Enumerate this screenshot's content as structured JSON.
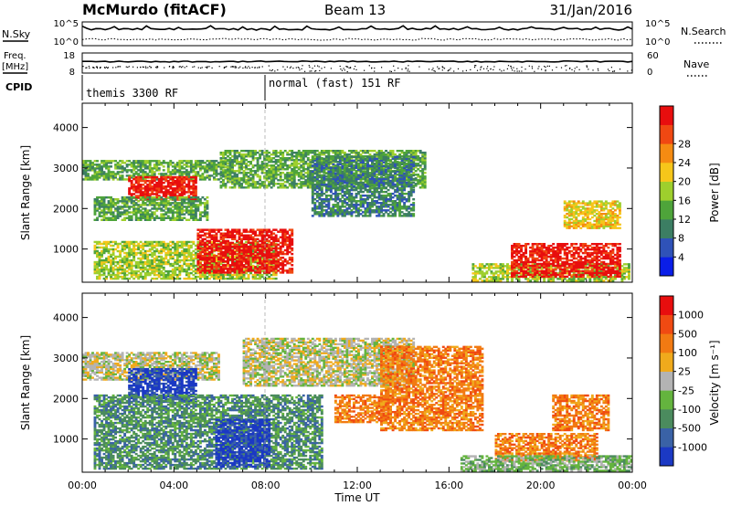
{
  "header": {
    "station": "McMurdo (fitACF)",
    "beam": "Beam 13",
    "date": "31/Jan/2016"
  },
  "top_panels": {
    "nsky_label": "N.Sky",
    "nsearch_label": "N.Search",
    "nsky_ticks": [
      "10^5",
      "10^0"
    ],
    "nsearch_ticks": [
      "10^5",
      "10^0"
    ],
    "freq_label_1": "Freq.",
    "freq_label_2": "[MHz]",
    "freq_ticks": [
      "18",
      "8"
    ],
    "nave_label": "Nave",
    "nave_ticks": [
      "60",
      "0"
    ],
    "cpid_label": "CPID",
    "cpid_segments": [
      "themis 3300 RF",
      "normal (fast) 151 RF"
    ]
  },
  "chart_data": [
    {
      "type": "heatmap",
      "panel": "power",
      "ylabel": "Slant Range [km]",
      "xlabel": "",
      "ylim": [
        180,
        4600
      ],
      "yticks": [
        "1000",
        "2000",
        "3000",
        "4000"
      ],
      "xlim_hours": [
        0,
        24
      ],
      "xticks": [
        "00:00",
        "04:00",
        "08:00",
        "12:00",
        "16:00",
        "20:00",
        "00:00"
      ],
      "colorbar": {
        "label": "Power [dB]",
        "ticks": [
          "4",
          "8",
          "12",
          "16",
          "20",
          "24",
          "28"
        ],
        "colors": [
          "#0a1ee8",
          "#2f52b8",
          "#3c7e63",
          "#4ea43a",
          "#9ecf2d",
          "#f6c61a",
          "#f58b12",
          "#f04812",
          "#e80e0e"
        ]
      },
      "regions": [
        {
          "t": [
            0.0,
            6.5
          ],
          "r": [
            2700,
            3200
          ],
          "level": 3
        },
        {
          "t": [
            2.0,
            5.0
          ],
          "r": [
            2200,
            2800
          ],
          "level": 8
        },
        {
          "t": [
            0.5,
            5.5
          ],
          "r": [
            1700,
            2300
          ],
          "level": 3
        },
        {
          "t": [
            0.5,
            8.5
          ],
          "r": [
            250,
            1200
          ],
          "level": 4
        },
        {
          "t": [
            5.0,
            9.2
          ],
          "r": [
            400,
            1500
          ],
          "level": 8
        },
        {
          "t": [
            6.0,
            15.0
          ],
          "r": [
            2500,
            3450
          ],
          "level": 3
        },
        {
          "t": [
            10.0,
            14.5
          ],
          "r": [
            1800,
            3300
          ],
          "level": 2
        },
        {
          "t": [
            21.0,
            23.5
          ],
          "r": [
            1500,
            2200
          ],
          "level": 5
        },
        {
          "t": [
            17.0,
            23.9
          ],
          "r": [
            200,
            650
          ],
          "level": 4
        },
        {
          "t": [
            18.7,
            23.5
          ],
          "r": [
            300,
            1150
          ],
          "level": 8
        }
      ]
    },
    {
      "type": "heatmap",
      "panel": "velocity",
      "ylabel": "Slant Range [km]",
      "xlabel": "Time UT",
      "ylim": [
        180,
        4600
      ],
      "yticks": [
        "1000",
        "2000",
        "3000",
        "4000"
      ],
      "xlim_hours": [
        0,
        24
      ],
      "xticks": [
        "00:00",
        "04:00",
        "08:00",
        "12:00",
        "16:00",
        "20:00",
        "00:00"
      ],
      "colorbar": {
        "label": "Velocity [m s⁻¹]",
        "ticks": [
          "1000",
          "500",
          "100",
          "25",
          "-25",
          "-100",
          "-500",
          "-1000"
        ],
        "colors": [
          "#1b39c4",
          "#3a62a6",
          "#4b8b5e",
          "#64b43e",
          "#b3b3b3",
          "#f0aa1c",
          "#f27a12",
          "#f04a12",
          "#e80e0e"
        ]
      },
      "regions": [
        {
          "t": [
            0.0,
            6.0
          ],
          "r": [
            2450,
            3150
          ],
          "level": 4
        },
        {
          "t": [
            2.0,
            5.0
          ],
          "r": [
            1900,
            2750
          ],
          "level": 0
        },
        {
          "t": [
            0.5,
            10.5
          ],
          "r": [
            250,
            2100
          ],
          "level": 2
        },
        {
          "t": [
            5.8,
            8.2
          ],
          "r": [
            300,
            1500
          ],
          "level": 0
        },
        {
          "t": [
            7.0,
            14.5
          ],
          "r": [
            2300,
            3500
          ],
          "level": 4
        },
        {
          "t": [
            11.0,
            13.5
          ],
          "r": [
            1400,
            2100
          ],
          "level": 6
        },
        {
          "t": [
            13.0,
            17.5
          ],
          "r": [
            1200,
            3300
          ],
          "level": 6
        },
        {
          "t": [
            20.5,
            23.0
          ],
          "r": [
            1200,
            2100
          ],
          "level": 6
        },
        {
          "t": [
            18.0,
            22.5
          ],
          "r": [
            450,
            1150
          ],
          "level": 6
        },
        {
          "t": [
            16.5,
            24.0
          ],
          "r": [
            200,
            600
          ],
          "level": 3
        }
      ]
    }
  ]
}
